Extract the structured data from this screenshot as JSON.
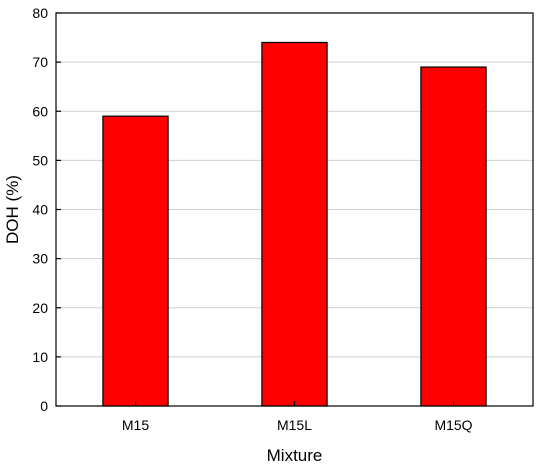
{
  "chart_data": {
    "type": "bar",
    "title": "",
    "xlabel": "Mixture",
    "ylabel": "DOH (%)",
    "categories": [
      "M15",
      "M15L",
      "M15Q"
    ],
    "values": [
      59,
      74,
      69
    ],
    "ylim": [
      0,
      80
    ],
    "yticks": [
      "0",
      "10",
      "20",
      "30",
      "40",
      "50",
      "60",
      "70",
      "80"
    ],
    "grid": "horizontal",
    "legend": "none",
    "bar_color": "#ff0000",
    "bar_edge_color": "#000000"
  }
}
